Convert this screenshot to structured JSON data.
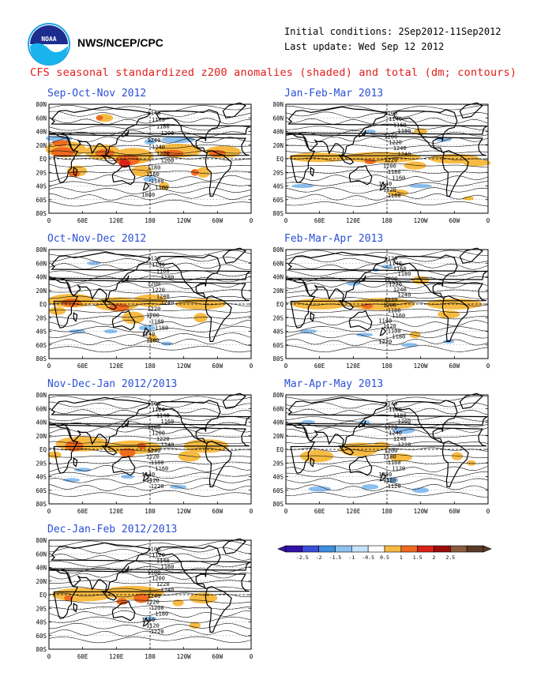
{
  "header": {
    "org": "NWS/NCEP/CPC",
    "init_conditions": "Initial conditions: 2Sep2012-11Sep2012",
    "last_update": "Last update: Wed Sep 12 2012",
    "title": "CFS seasonal standardized z200 anomalies (shaded) and total (dm; contours)",
    "logo_text": "NOAA"
  },
  "axes": {
    "lat_labels": [
      "80N",
      "60N",
      "40N",
      "20N",
      "EQ",
      "20S",
      "40S",
      "60S",
      "80S"
    ],
    "lon_labels": [
      "0",
      "60E",
      "120E",
      "180",
      "120W",
      "60W",
      "0"
    ]
  },
  "panels": [
    {
      "id": "son",
      "title": "Sep-Oct-Nov 2012",
      "contour_labels": [
        "1140",
        "1160",
        "1180",
        "1200",
        "1240",
        "1240",
        "1220",
        "1200",
        "1180",
        "1160",
        "1180",
        "1100",
        "1080"
      ]
    },
    {
      "id": "jfm",
      "title": "Jan-Feb-Mar 2013",
      "contour_labels": [
        "1100",
        "1140",
        "1160",
        "1180",
        "1200",
        "1220",
        "1240",
        "1240",
        "1220",
        "1200",
        "1180",
        "1160",
        "1140",
        "1120",
        "1160"
      ]
    },
    {
      "id": "ond",
      "title": "Oct-Nov-Dec 2012",
      "contour_labels": [
        "1120",
        "1140",
        "1160",
        "1180",
        "1200",
        "1220",
        "1240",
        "1240",
        "1220",
        "1200",
        "1180",
        "1160",
        "1140",
        "1100"
      ]
    },
    {
      "id": "fma",
      "title": "Feb-Mar-Apr 2013",
      "contour_labels": [
        "1120",
        "1140",
        "1160",
        "1180",
        "1200",
        "1220",
        "1240",
        "1240",
        "1220",
        "1200",
        "1180",
        "1160",
        "1140",
        "1120",
        "1100",
        "1180",
        "1220"
      ]
    },
    {
      "id": "ndj",
      "title": "Nov-Dec-Jan 2012/2013",
      "contour_labels": [
        "1100",
        "1120",
        "1140",
        "1160",
        "1180",
        "1200",
        "1220",
        "1240",
        "1240",
        "1220",
        "1180",
        "1160",
        "1140",
        "1120",
        "1220"
      ]
    },
    {
      "id": "mam",
      "title": "Mar-Apr-May 2013",
      "contour_labels": [
        "1140",
        "1160",
        "1180",
        "1200",
        "1220",
        "1240",
        "1240",
        "1220",
        "1200",
        "1180",
        "1160",
        "1120",
        "1080",
        "1180",
        "1120"
      ]
    },
    {
      "id": "djf",
      "title": "Dec-Jan-Feb 2012/2013",
      "contour_labels": [
        "1100",
        "1120",
        "1140",
        "1160",
        "1180",
        "1200",
        "1220",
        "1240",
        "1240",
        "1220",
        "1200",
        "1180",
        "1160",
        "1120",
        "1220"
      ]
    }
  ],
  "colorbar": {
    "labels": [
      "-2.5",
      "-2",
      "-1.5",
      "-1",
      "-0.5",
      "0.5",
      "1",
      "1.5",
      "2",
      "2.5"
    ],
    "colors": [
      "#3212a8",
      "#3a4ed8",
      "#3f8ee0",
      "#8cc0f0",
      "#c6e2fa",
      "#ffffff",
      "#f7bb43",
      "#f06a1f",
      "#d8231a",
      "#9c0c0c",
      "#8c5a3c",
      "#5a3a28"
    ]
  },
  "colors": {
    "title": "#e21b1b",
    "panel_title": "#2b4fd6",
    "land": "#000000"
  }
}
